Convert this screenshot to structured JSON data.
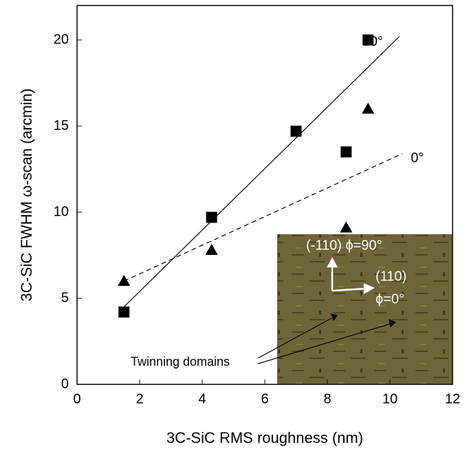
{
  "chart_data": {
    "type": "scatter",
    "xlabel": "3C-SiC RMS roughness (nm)",
    "ylabel": "3C-SiC FWHM ω-scan (arcmin)",
    "xlim": [
      0,
      12
    ],
    "xticks": [
      0,
      2,
      4,
      6,
      8,
      10,
      12
    ],
    "ylim": [
      0,
      22
    ],
    "yticks": [
      0,
      5,
      10,
      15,
      20
    ],
    "series": [
      {
        "name": "90°",
        "marker": "square",
        "color": "#000000",
        "x": [
          1.5,
          4.3,
          7.0,
          8.6,
          9.3
        ],
        "values": [
          4.2,
          9.7,
          14.7,
          13.5,
          20.0
        ],
        "fit": {
          "style": "solid",
          "x": [
            1.5,
            10.3
          ],
          "values": [
            4.5,
            20.2
          ]
        }
      },
      {
        "name": "0°",
        "marker": "triangle",
        "color": "#000000",
        "x": [
          1.5,
          4.3,
          8.6,
          9.3
        ],
        "values": [
          6.0,
          7.8,
          9.1,
          16.0
        ],
        "fit": {
          "style": "dashed",
          "x": [
            1.5,
            10.4
          ],
          "values": [
            6.0,
            13.4
          ]
        }
      }
    ],
    "inset": {
      "label_90": "(-110) ϕ=90°",
      "label_110": "(110)",
      "label_0": "ϕ=0°",
      "callout": "Twinning domains"
    }
  }
}
